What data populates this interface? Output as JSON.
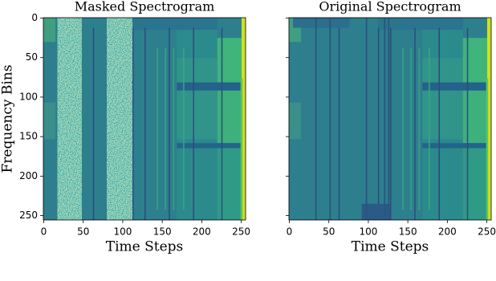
{
  "chart_data": [
    {
      "type": "heatmap",
      "title": "Masked Spectrogram",
      "xlabel": "Time Steps",
      "ylabel": "Frequency Bins",
      "xlim": [
        -0.5,
        255.5
      ],
      "ylim": [
        -0.5,
        255.5
      ],
      "xticks": [
        0,
        50,
        100,
        150,
        200,
        250
      ],
      "yticks": [
        0,
        50,
        100,
        150,
        200,
        250
      ],
      "ytick_labels": true,
      "masked": true,
      "cmap": "viridis"
    },
    {
      "type": "heatmap",
      "title": "Original Spectrogram",
      "xlabel": "Time Steps",
      "xlim": [
        -0.5,
        255.5
      ],
      "ylim": [
        -0.5,
        255.5
      ],
      "xticks": [
        0,
        50,
        100,
        150,
        200,
        250
      ],
      "yticks": [
        0,
        50,
        100,
        150,
        200,
        250
      ],
      "ytick_labels": false,
      "masked": false,
      "cmap": "viridis"
    }
  ]
}
